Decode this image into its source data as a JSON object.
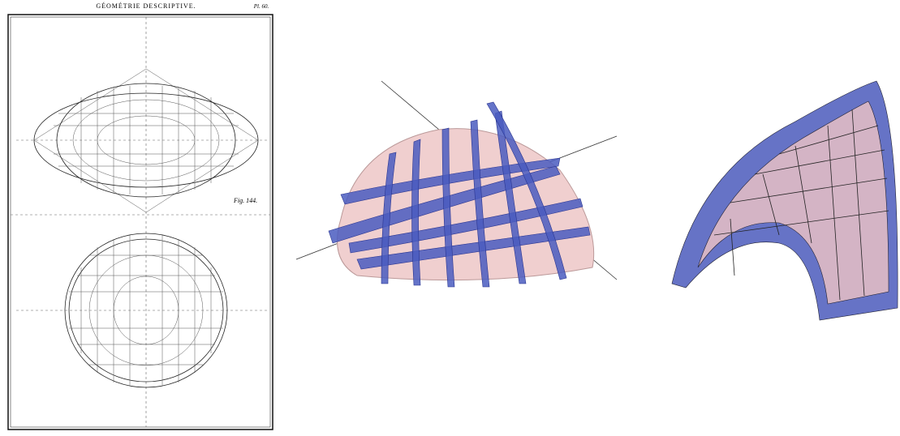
{
  "plate": {
    "title": "GÉOMÉTRIE DESCRIPTIVE.",
    "plate_number": "Pl. 60.",
    "figure_label": "Fig. 144."
  }
}
